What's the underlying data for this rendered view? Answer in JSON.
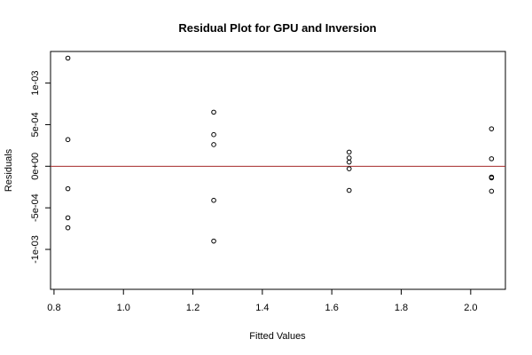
{
  "chart_data": {
    "type": "scatter",
    "title": "Residual Plot for GPU and Inversion",
    "xlabel": "Fitted Values",
    "ylabel": "Residuals",
    "xlim": [
      0.79,
      2.1
    ],
    "ylim": [
      -0.00148,
      0.00138
    ],
    "x_ticks": [
      0.8,
      1.0,
      1.2,
      1.4,
      1.6,
      1.8,
      2.0
    ],
    "x_tick_labels": [
      "0.8",
      "1.0",
      "1.2",
      "1.4",
      "1.6",
      "1.8",
      "2.0"
    ],
    "y_ticks": [
      -0.001,
      -0.0005,
      0,
      0.0005,
      0.001
    ],
    "y_tick_labels": [
      "-1e-03",
      "-5e-04",
      "0e+00",
      "5e-04",
      "1e-03"
    ],
    "reference_line": {
      "y": 0,
      "color": "#a52a2a"
    },
    "grid": false,
    "point_color": "#000000",
    "points": [
      {
        "x": 0.84,
        "y": 0.0013
      },
      {
        "x": 0.84,
        "y": 0.00032
      },
      {
        "x": 0.84,
        "y": -0.00027
      },
      {
        "x": 0.84,
        "y": -0.00062
      },
      {
        "x": 0.84,
        "y": -0.00074
      },
      {
        "x": 1.26,
        "y": 0.00065
      },
      {
        "x": 1.26,
        "y": 0.00038
      },
      {
        "x": 1.26,
        "y": 0.00026
      },
      {
        "x": 1.26,
        "y": -0.00041
      },
      {
        "x": 1.26,
        "y": -0.0009
      },
      {
        "x": 1.65,
        "y": 0.00017
      },
      {
        "x": 1.65,
        "y": 0.0001
      },
      {
        "x": 1.65,
        "y": 5e-05
      },
      {
        "x": 1.65,
        "y": -3e-05
      },
      {
        "x": 1.65,
        "y": -0.00029
      },
      {
        "x": 2.06,
        "y": 0.00045
      },
      {
        "x": 2.06,
        "y": 9e-05
      },
      {
        "x": 2.06,
        "y": -0.00013
      },
      {
        "x": 2.06,
        "y": -0.00014
      },
      {
        "x": 2.06,
        "y": -0.0003
      }
    ]
  }
}
